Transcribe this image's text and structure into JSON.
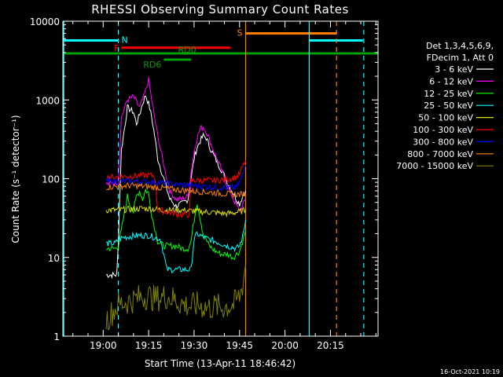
{
  "chart_data": {
    "type": "line",
    "title": "RHESSI Observing Summary Count Rates",
    "xlabel": "Start Time (13-Apr-11 18:46:42)",
    "ylabel": "Count Rate (s⁻¹ detector⁻¹)",
    "x_unit": "minutes after 18:46:42",
    "xlim": [
      0,
      104
    ],
    "ylim": [
      1,
      10000
    ],
    "yscale": "log",
    "x_ticks": [
      {
        "x": 13.3,
        "label": "19:00"
      },
      {
        "x": 28.3,
        "label": "19:15"
      },
      {
        "x": 43.3,
        "label": "19:30"
      },
      {
        "x": 58.3,
        "label": "19:45"
      },
      {
        "x": 73.3,
        "label": "20:00"
      },
      {
        "x": 88.3,
        "label": "20:15"
      }
    ],
    "y_ticks": [
      {
        "y": 1,
        "label": "1"
      },
      {
        "y": 10,
        "label": "10"
      },
      {
        "y": 100,
        "label": "100"
      },
      {
        "y": 1000,
        "label": "1000"
      },
      {
        "y": 10000,
        "label": "10000"
      }
    ],
    "legend": {
      "placement": "right",
      "header": [
        "Det 1,3,4,5,6,9,",
        "FDecim 1, Att 0"
      ]
    },
    "footer_date": "16-Oct-2021 10:19",
    "flags": [
      {
        "label": "N",
        "color": "#00ffff",
        "segments": [
          [
            0,
            18.3
          ],
          [
            81.3,
            99
          ]
        ],
        "y": 5700
      },
      {
        "label": "S",
        "color": "#ff8000",
        "segments": [
          [
            60.3,
            90.3
          ]
        ],
        "y": 7000
      },
      {
        "label": "F",
        "color": "#ff0000",
        "segments": [
          [
            19.3,
            55.3
          ]
        ],
        "y": 4600
      },
      {
        "label": "RD0",
        "color": "#00a000",
        "segments": [
          [
            0,
            104
          ]
        ],
        "y": 3900
      },
      {
        "label": "RD6",
        "color": "#00a000",
        "segments": [
          [
            33.3,
            42.3
          ]
        ],
        "y": 3250
      }
    ],
    "vlines": [
      {
        "x": 0.3,
        "color": "#00ffff",
        "style": "solid"
      },
      {
        "x": 18.3,
        "color": "#00ffff",
        "style": "dashed"
      },
      {
        "x": 60.3,
        "color": "#ff8000",
        "style": "solid"
      },
      {
        "x": 81.3,
        "color": "#00ffff",
        "style": "solid"
      },
      {
        "x": 90.3,
        "color": "#ff8000",
        "style": "dashed"
      },
      {
        "x": 99.3,
        "color": "#00ffff",
        "style": "dashed"
      }
    ],
    "series": [
      {
        "name": "3 - 6 keV",
        "color": "#ffffff",
        "x": [
          14.3,
          16.8,
          17.8,
          18.3,
          19.3,
          21.3,
          23.3,
          24.3,
          25.3,
          26.3,
          27.3,
          28.3,
          29.3,
          30.3,
          31.3,
          33.3,
          35.3,
          37.3,
          39.3,
          41.3,
          42.3,
          43.3,
          44.3,
          45.3,
          46.3,
          47.3,
          48.3,
          50.3,
          52.3,
          54.3,
          56.3,
          57.3,
          58.3,
          59.3,
          60.3
        ],
        "y": [
          6,
          6,
          6,
          16,
          230,
          800,
          700,
          500,
          650,
          900,
          1150,
          900,
          600,
          350,
          180,
          100,
          55,
          45,
          48,
          55,
          100,
          180,
          250,
          300,
          350,
          330,
          260,
          180,
          130,
          90,
          65,
          55,
          48,
          60,
          70
        ]
      },
      {
        "name": "6 - 12 keV",
        "color": "#ff00ff",
        "x": [
          14.3,
          18.3,
          19.3,
          21.3,
          23.3,
          25.3,
          26.3,
          27.3,
          28.3,
          29.3,
          31.3,
          33.3,
          35.3,
          37.3,
          39.3,
          41.3,
          42.3,
          43.3,
          44.3,
          45.3,
          46.3,
          47.3,
          48.3,
          50.3,
          52.3,
          54.3,
          56.3,
          57.3,
          58.3,
          59.3,
          60.3
        ],
        "y": [
          85,
          90,
          600,
          1000,
          1100,
          800,
          1000,
          1300,
          1800,
          1000,
          350,
          150,
          70,
          55,
          55,
          60,
          120,
          220,
          330,
          430,
          450,
          400,
          320,
          200,
          130,
          80,
          55,
          45,
          40,
          45,
          55
        ]
      },
      {
        "name": "12 - 25 keV",
        "color": "#00ff00",
        "x": [
          14.3,
          17.3,
          18.3,
          19.3,
          21.3,
          22.3,
          23.3,
          24.3,
          25.3,
          26.3,
          27.3,
          28.3,
          29.3,
          31.3,
          33.3,
          35.3,
          37.3,
          39.3,
          41.3,
          42.3,
          43.3,
          44.3,
          46.3,
          48.3,
          50.3,
          52.3,
          54.3,
          56.3,
          57.3,
          58.3,
          59.3,
          60.3
        ],
        "y": [
          13,
          13,
          14,
          22,
          60,
          45,
          38,
          60,
          70,
          55,
          72,
          65,
          35,
          16,
          14,
          14,
          14,
          13,
          13,
          16,
          30,
          50,
          20,
          14,
          12,
          11,
          11,
          10,
          11,
          12,
          16,
          22
        ]
      },
      {
        "name": "25 - 50 keV",
        "color": "#00ffff",
        "x": [
          14.3,
          17.3,
          18.3,
          20.3,
          24.3,
          28.3,
          30.3,
          32.3,
          34.3,
          36.3,
          38.3,
          40.3,
          42.3,
          43.3,
          44.3,
          46.3,
          50.3,
          54.3,
          57.3,
          58.3,
          59.3,
          60.3
        ],
        "y": [
          15,
          15,
          17,
          18,
          19,
          19,
          18,
          17,
          7,
          7,
          7,
          7,
          7,
          17,
          20,
          18,
          16,
          14,
          13,
          14,
          18,
          30
        ]
      },
      {
        "name": "50 - 100 keV",
        "color": "#e0e000",
        "x": [
          14.3,
          18.3,
          22.3,
          26.3,
          30.3,
          34.3,
          38.3,
          42.3,
          46.3,
          50.3,
          54.3,
          58.3,
          60.3
        ],
        "y": [
          40,
          40,
          41,
          42,
          41,
          40,
          40,
          39,
          38,
          37,
          36,
          38,
          40
        ]
      },
      {
        "name": "100 - 300 keV",
        "color": "#ff0000",
        "x": [
          14.3,
          18.3,
          22.3,
          26.3,
          30.3,
          31.3,
          34.3,
          38.3,
          41.8,
          42.3,
          46.3,
          50.3,
          54.3,
          57.3,
          58.3,
          59.3,
          60.3
        ],
        "y": [
          105,
          105,
          108,
          110,
          110,
          40,
          38,
          35,
          35,
          95,
          95,
          95,
          98,
          105,
          115,
          140,
          170
        ]
      },
      {
        "name": "300 - 800 keV",
        "color": "#0000ff",
        "x": [
          14.3,
          18.3,
          22.3,
          26.3,
          30.3,
          34.3,
          38.3,
          42.3,
          46.3,
          50.3,
          54.3,
          57.3,
          58.3,
          59.3,
          60.3
        ],
        "y": [
          92,
          92,
          93,
          92,
          90,
          87,
          84,
          82,
          80,
          78,
          76,
          78,
          90,
          110,
          150
        ]
      },
      {
        "name": "800 - 7000 keV",
        "color": "#ff8000",
        "x": [
          14.3,
          18.3,
          22.3,
          26.3,
          30.3,
          34.3,
          38.3,
          42.3,
          46.3,
          50.3,
          54.3,
          58.3,
          60.3
        ],
        "y": [
          78,
          80,
          82,
          80,
          78,
          75,
          72,
          70,
          68,
          66,
          64,
          63,
          65
        ]
      },
      {
        "name": "7000 - 15000 keV",
        "color": "#808000",
        "x": [
          14.3,
          16.3,
          18.3,
          20.3,
          22.3,
          24.3,
          26.3,
          28.3,
          30.3,
          32.3,
          34.3,
          36.3,
          38.3,
          40.3,
          42.3,
          44.3,
          46.3,
          48.3,
          50.3,
          52.3,
          54.3,
          56.3,
          58.3,
          59.3,
          60.3
        ],
        "y": [
          1.6,
          2,
          2.5,
          2.7,
          2.8,
          3,
          3.2,
          3.2,
          3,
          3.1,
          3.2,
          3,
          2.7,
          2.5,
          2.4,
          2.5,
          2.4,
          2.3,
          2.4,
          2.3,
          2.4,
          2.5,
          3.2,
          4.5,
          8
        ]
      }
    ]
  }
}
